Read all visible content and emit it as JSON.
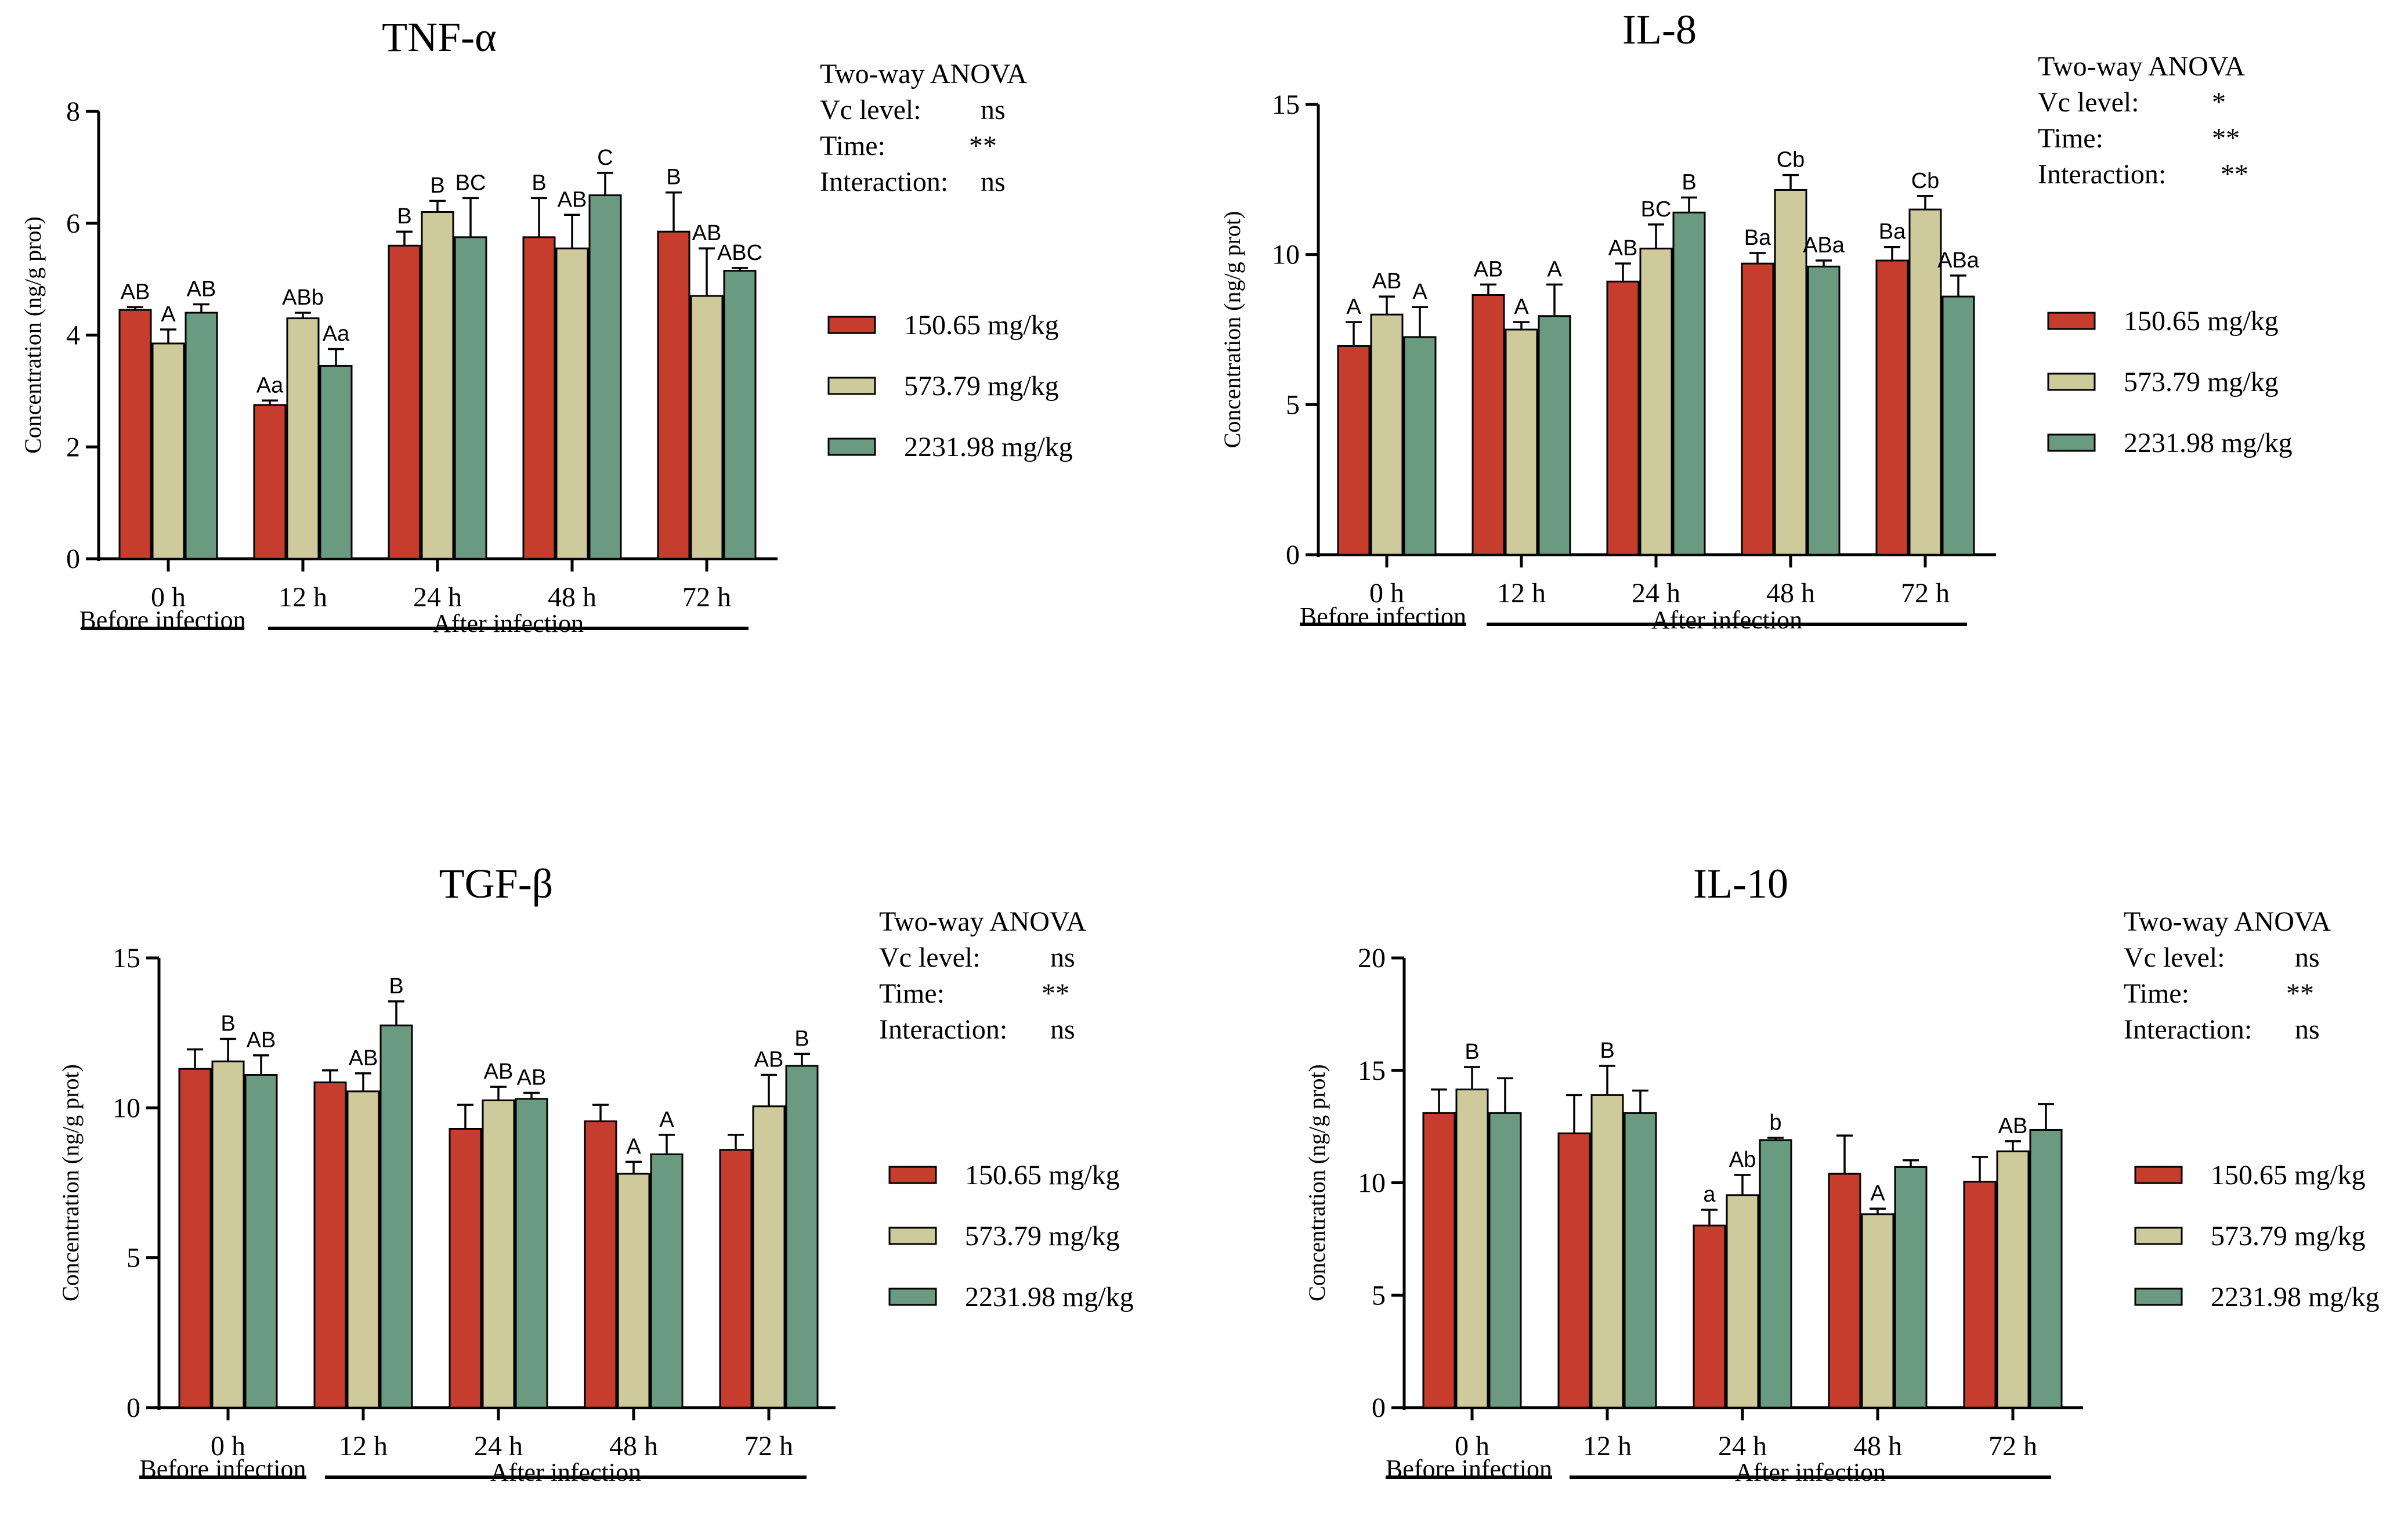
{
  "colors": {
    "low": "#C63D2E",
    "mid": "#CFCA9C",
    "high": "#6A9A80",
    "axis": "#000000"
  },
  "charts": [
    {
      "title": "TNF-α",
      "ylabel": "Concentration (ng/g prot)",
      "ylim": [
        0,
        8
      ],
      "yticks": [
        "0",
        "2",
        "4",
        "6",
        "8"
      ],
      "categories": [
        "0 h",
        "12 h",
        "24 h",
        "48 h",
        "72 h"
      ],
      "period_labels": {
        "before": "Before infection",
        "after": "After infection"
      },
      "anova": {
        "heading": "Two-way ANOVA",
        "rows": [
          {
            "label": "Vc level:",
            "value": "ns"
          },
          {
            "label": "Time:",
            "value": "**"
          },
          {
            "label": "Interaction:",
            "value": "ns"
          }
        ]
      },
      "legend": [
        "150.65 mg/kg",
        "573.79 mg/kg",
        "2231.98 mg/kg"
      ]
    },
    {
      "title": "IL-8",
      "ylabel": "Concentration (ng/g prot)",
      "ylim": [
        0,
        15
      ],
      "yticks": [
        "0",
        "5",
        "10",
        "15"
      ],
      "categories": [
        "0 h",
        "12 h",
        "24 h",
        "48 h",
        "72 h"
      ],
      "period_labels": {
        "before": "Before infection",
        "after": "After infection"
      },
      "anova": {
        "heading": "Two-way ANOVA",
        "rows": [
          {
            "label": "Vc level:",
            "value": "*"
          },
          {
            "label": "Time:",
            "value": "**"
          },
          {
            "label": "Interaction:",
            "value": "**"
          }
        ]
      },
      "legend": [
        "150.65 mg/kg",
        "573.79 mg/kg",
        "2231.98 mg/kg"
      ]
    },
    {
      "title": "TGF-β",
      "ylabel": "Concentration (ng/g prot)",
      "ylim": [
        0,
        15
      ],
      "yticks": [
        "0",
        "5",
        "10",
        "15"
      ],
      "categories": [
        "0 h",
        "12 h",
        "24 h",
        "48 h",
        "72 h"
      ],
      "period_labels": {
        "before": "Before infection",
        "after": "After infection"
      },
      "anova": {
        "heading": "Two-way ANOVA",
        "rows": [
          {
            "label": "Vc level:",
            "value": "ns"
          },
          {
            "label": "Time:",
            "value": "**"
          },
          {
            "label": "Interaction:",
            "value": "ns"
          }
        ]
      },
      "legend": [
        "150.65 mg/kg",
        "573.79 mg/kg",
        "2231.98 mg/kg"
      ]
    },
    {
      "title": "IL-10",
      "ylabel": "Concentration (ng/g prot)",
      "ylim": [
        0,
        20
      ],
      "yticks": [
        "0",
        "5",
        "10",
        "15",
        "20"
      ],
      "categories": [
        "0 h",
        "12 h",
        "24 h",
        "48 h",
        "72 h"
      ],
      "period_labels": {
        "before": "Before infection",
        "after": "After infection"
      },
      "anova": {
        "heading": "Two-way ANOVA",
        "rows": [
          {
            "label": "Vc level:",
            "value": "ns"
          },
          {
            "label": "Time:",
            "value": "**"
          },
          {
            "label": "Interaction:",
            "value": "ns"
          }
        ]
      },
      "legend": [
        "150.65 mg/kg",
        "573.79 mg/kg",
        "2231.98 mg/kg"
      ]
    }
  ],
  "chart_data": [
    {
      "type": "bar",
      "title": "TNF-α",
      "xlabel": "",
      "ylabel": "Concentration (ng/g prot)",
      "ylim": [
        0,
        8
      ],
      "categories": [
        "0 h",
        "12 h",
        "24 h",
        "48 h",
        "72 h"
      ],
      "series": [
        {
          "name": "150.65 mg/kg",
          "values": [
            4.45,
            2.75,
            5.6,
            5.75,
            5.85
          ],
          "errors": [
            0.05,
            0.08,
            0.25,
            0.7,
            0.7
          ],
          "labels": [
            "AB",
            "Aa",
            "B",
            "B",
            "B"
          ]
        },
        {
          "name": "573.79 mg/kg",
          "values": [
            3.85,
            4.3,
            6.2,
            5.55,
            4.7
          ],
          "errors": [
            0.25,
            0.1,
            0.2,
            0.6,
            0.85
          ],
          "labels": [
            "A",
            "ABb",
            "B",
            "AB",
            "AB"
          ]
        },
        {
          "name": "2231.98 mg/kg",
          "values": [
            4.4,
            3.45,
            5.75,
            6.5,
            5.15
          ],
          "errors": [
            0.15,
            0.3,
            0.7,
            0.4,
            0.05
          ],
          "labels": [
            "AB",
            "Aa",
            "BC",
            "C",
            "ABC"
          ]
        }
      ]
    },
    {
      "type": "bar",
      "title": "IL-8",
      "xlabel": "",
      "ylabel": "Concentration (ng/g prot)",
      "ylim": [
        0,
        15
      ],
      "categories": [
        "0 h",
        "12 h",
        "24 h",
        "48 h",
        "72 h"
      ],
      "series": [
        {
          "name": "150.65 mg/kg",
          "values": [
            6.95,
            8.65,
            9.1,
            9.7,
            9.8
          ],
          "errors": [
            0.8,
            0.35,
            0.6,
            0.35,
            0.45
          ],
          "labels": [
            "A",
            "AB",
            "AB",
            "Ba",
            "Ba"
          ]
        },
        {
          "name": "573.79 mg/kg",
          "values": [
            8.0,
            7.5,
            10.2,
            12.15,
            11.5
          ],
          "errors": [
            0.6,
            0.25,
            0.8,
            0.5,
            0.45
          ],
          "labels": [
            "AB",
            "A",
            "BC",
            "Cb",
            "Cb"
          ]
        },
        {
          "name": "2231.98 mg/kg",
          "values": [
            7.25,
            7.95,
            11.4,
            9.6,
            8.6
          ],
          "errors": [
            1.0,
            1.05,
            0.5,
            0.2,
            0.7
          ],
          "labels": [
            "A",
            "A",
            "B",
            "ABa",
            "ABa"
          ]
        }
      ]
    },
    {
      "type": "bar",
      "title": "TGF-β",
      "xlabel": "",
      "ylabel": "Concentration (ng/g prot)",
      "ylim": [
        0,
        15
      ],
      "categories": [
        "0 h",
        "12 h",
        "24 h",
        "48 h",
        "72 h"
      ],
      "series": [
        {
          "name": "150.65 mg/kg",
          "values": [
            11.3,
            10.85,
            9.3,
            9.55,
            8.6
          ],
          "errors": [
            0.65,
            0.4,
            0.8,
            0.55,
            0.5
          ],
          "labels": [
            "",
            "",
            "",
            "",
            ""
          ]
        },
        {
          "name": "573.79 mg/kg",
          "values": [
            11.55,
            10.55,
            10.25,
            7.8,
            10.05
          ],
          "errors": [
            0.75,
            0.6,
            0.45,
            0.4,
            1.05
          ],
          "labels": [
            "B",
            "AB",
            "AB",
            "A",
            "AB"
          ]
        },
        {
          "name": "2231.98 mg/kg",
          "values": [
            11.1,
            12.75,
            10.3,
            8.45,
            11.4
          ],
          "errors": [
            0.65,
            0.8,
            0.2,
            0.65,
            0.4
          ],
          "labels": [
            "AB",
            "B",
            "AB",
            "A",
            "B"
          ]
        }
      ]
    },
    {
      "type": "bar",
      "title": "IL-10",
      "xlabel": "",
      "ylabel": "Concentration (ng/g prot)",
      "ylim": [
        0,
        20
      ],
      "categories": [
        "0 h",
        "12 h",
        "24 h",
        "48 h",
        "72 h"
      ],
      "series": [
        {
          "name": "150.65 mg/kg",
          "values": [
            13.1,
            12.2,
            8.1,
            10.4,
            10.05
          ],
          "errors": [
            1.05,
            1.7,
            0.7,
            1.7,
            1.1
          ],
          "labels": [
            "",
            "",
            "a",
            "",
            ""
          ]
        },
        {
          "name": "573.79 mg/kg",
          "values": [
            14.15,
            13.9,
            9.45,
            8.6,
            11.4
          ],
          "errors": [
            1.0,
            1.3,
            0.9,
            0.25,
            0.45
          ],
          "labels": [
            "B",
            "B",
            "Ab",
            "A",
            "AB"
          ]
        },
        {
          "name": "2231.98 mg/kg",
          "values": [
            13.1,
            13.1,
            11.9,
            10.7,
            12.35
          ],
          "errors": [
            1.55,
            1.0,
            0.1,
            0.3,
            1.15
          ],
          "labels": [
            "",
            "",
            "b",
            "",
            ""
          ]
        }
      ]
    }
  ]
}
